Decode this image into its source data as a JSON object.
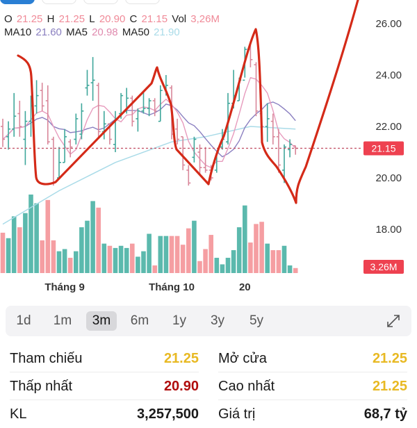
{
  "legend": {
    "o_label": "O",
    "o": "21.25",
    "h_label": "H",
    "h": "21.25",
    "l_label": "L",
    "l": "20.90",
    "c_label": "C",
    "c": "21.15",
    "vol_label": "Vol",
    "vol": "3,26M",
    "ma10_label": "MA10",
    "ma10": "21.60",
    "ma5_label": "MA5",
    "ma5": "20.98",
    "ma50_label": "MA50",
    "ma50": "21.90"
  },
  "colors": {
    "up": "#3fa79b",
    "down": "#f2969b",
    "ma10": "#8a7fc0",
    "ma5": "#e79bbd",
    "ma50": "#a9dbe8",
    "annotation": "#d42a18",
    "accent": "#2a7fd4",
    "yellow": "#e8b923",
    "red": "#b00d0d"
  },
  "chart_data": {
    "type": "candlestick",
    "price_axis": {
      "ticks": [
        "26.00",
        "24.00",
        "22.00",
        "20.00",
        "18.00"
      ],
      "range": [
        17.5,
        26.9
      ]
    },
    "time_labels": [
      {
        "label": "Tháng 9",
        "bar": 11
      },
      {
        "label": "Tháng 10",
        "bar": 30
      },
      {
        "label": "20",
        "bar": 43
      }
    ],
    "current_price": "21.15",
    "current_volume": "3.26M",
    "volume_range_m": [
      2.8,
      10
    ],
    "bars_ohlcv": [
      [
        22.0,
        22.3,
        21.2,
        21.5,
        6.5
      ],
      [
        21.6,
        22.2,
        21.1,
        21.9,
        6.0
      ],
      [
        21.9,
        23.3,
        21.6,
        22.4,
        8.0
      ],
      [
        22.5,
        23.0,
        21.6,
        22.0,
        7.0
      ],
      [
        21.5,
        22.6,
        20.5,
        22.2,
        8.3
      ],
      [
        22.2,
        23.2,
        21.6,
        22.8,
        10.0
      ],
      [
        22.8,
        23.8,
        22.5,
        23.2,
        9.2
      ],
      [
        23.4,
        23.7,
        22.6,
        22.8,
        5.8
      ],
      [
        23.0,
        23.6,
        21.3,
        21.4,
        9.5
      ],
      [
        21.5,
        21.6,
        19.7,
        19.8,
        5.8
      ],
      [
        20.0,
        21.2,
        20.0,
        20.6,
        4.8
      ],
      [
        20.6,
        21.9,
        20.6,
        21.6,
        5.0
      ],
      [
        21.4,
        21.5,
        20.8,
        21.2,
        4.2
      ],
      [
        21.5,
        22.5,
        21.3,
        22.3,
        4.8
      ],
      [
        21.7,
        22.9,
        21.5,
        22.6,
        7.0
      ],
      [
        23.5,
        24.2,
        23.2,
        23.6,
        7.6
      ],
      [
        23.7,
        24.7,
        23.0,
        23.8,
        9.4
      ],
      [
        23.6,
        23.7,
        21.6,
        21.8,
        8.8
      ],
      [
        21.8,
        22.6,
        21.5,
        22.1,
        5.5
      ],
      [
        22.1,
        22.1,
        21.3,
        21.5,
        5.3
      ],
      [
        21.3,
        22.6,
        21.0,
        22.3,
        5.1
      ],
      [
        22.5,
        23.3,
        22.3,
        23.2,
        5.3
      ],
      [
        22.6,
        23.5,
        22.5,
        23.1,
        5.1
      ],
      [
        23.1,
        23.2,
        22.0,
        22.2,
        5.5
      ],
      [
        22.3,
        22.7,
        21.8,
        22.6,
        4.3
      ],
      [
        22.6,
        23.4,
        22.5,
        22.7,
        4.8
      ],
      [
        22.7,
        23.1,
        22.4,
        23.0,
        6.4
      ],
      [
        23.0,
        23.1,
        22.4,
        22.6,
        3.5
      ],
      [
        22.2,
        23.6,
        22.2,
        23.4,
        6.2
      ],
      [
        23.5,
        24.0,
        23.2,
        23.6,
        6.2
      ],
      [
        23.5,
        23.6,
        21.5,
        21.7,
        6.2
      ],
      [
        21.9,
        22.3,
        21.3,
        21.5,
        6.2
      ],
      [
        21.6,
        21.6,
        20.3,
        20.5,
        5.4
      ],
      [
        20.3,
        20.5,
        19.7,
        19.8,
        6.9
      ],
      [
        20.8,
        21.6,
        20.6,
        21.5,
        7.6
      ],
      [
        21.0,
        21.3,
        20.1,
        20.4,
        3.9
      ],
      [
        20.4,
        21.2,
        20.2,
        20.3,
        5.0
      ],
      [
        20.3,
        20.5,
        19.9,
        20.0,
        6.3
      ],
      [
        20.3,
        21.0,
        20.2,
        21.0,
        4.2
      ],
      [
        21.2,
        21.9,
        21.1,
        21.5,
        3.6
      ],
      [
        21.4,
        23.3,
        21.3,
        22.9,
        4.2
      ],
      [
        22.9,
        24.2,
        22.7,
        23.2,
        4.9
      ],
      [
        23.0,
        23.9,
        23.0,
        23.8,
        7.0
      ],
      [
        23.8,
        25.1,
        23.9,
        25.0,
        9.0
      ],
      [
        25.0,
        25.3,
        24.3,
        24.6,
        5.6
      ],
      [
        24.4,
        24.5,
        22.4,
        22.6,
        7.3
      ],
      [
        22.5,
        22.6,
        21.7,
        22.0,
        7.5
      ],
      [
        22.0,
        22.9,
        21.4,
        22.3,
        5.5
      ],
      [
        22.2,
        22.5,
        21.3,
        21.6,
        4.9
      ],
      [
        21.6,
        21.9,
        20.2,
        20.5,
        4.9
      ],
      [
        20.3,
        21.3,
        19.8,
        21.2,
        5.3
      ],
      [
        21.1,
        21.5,
        20.8,
        21.3,
        3.5
      ],
      [
        21.25,
        21.25,
        20.9,
        21.15,
        3.26
      ]
    ],
    "ma50_points": [
      [
        0,
        18.2
      ],
      [
        10,
        19.5
      ],
      [
        20,
        20.6
      ],
      [
        30,
        21.4
      ],
      [
        36,
        21.6
      ],
      [
        44,
        22.0
      ],
      [
        52,
        21.9
      ]
    ]
  },
  "periods": [
    "1d",
    "1m",
    "3m",
    "6m",
    "1y",
    "3y",
    "5y"
  ],
  "selected_period": "3m",
  "stats": {
    "ref_label": "Tham chiếu",
    "ref": "21.25",
    "open_label": "Mở cửa",
    "open": "21.25",
    "low_label": "Thấp nhất",
    "low": "20.90",
    "high_label": "Cao nhất",
    "high": "21.25",
    "vol_label": "KL",
    "vol": "3,257,500",
    "value_label": "Giá trị",
    "value": "68,7 tỷ"
  }
}
